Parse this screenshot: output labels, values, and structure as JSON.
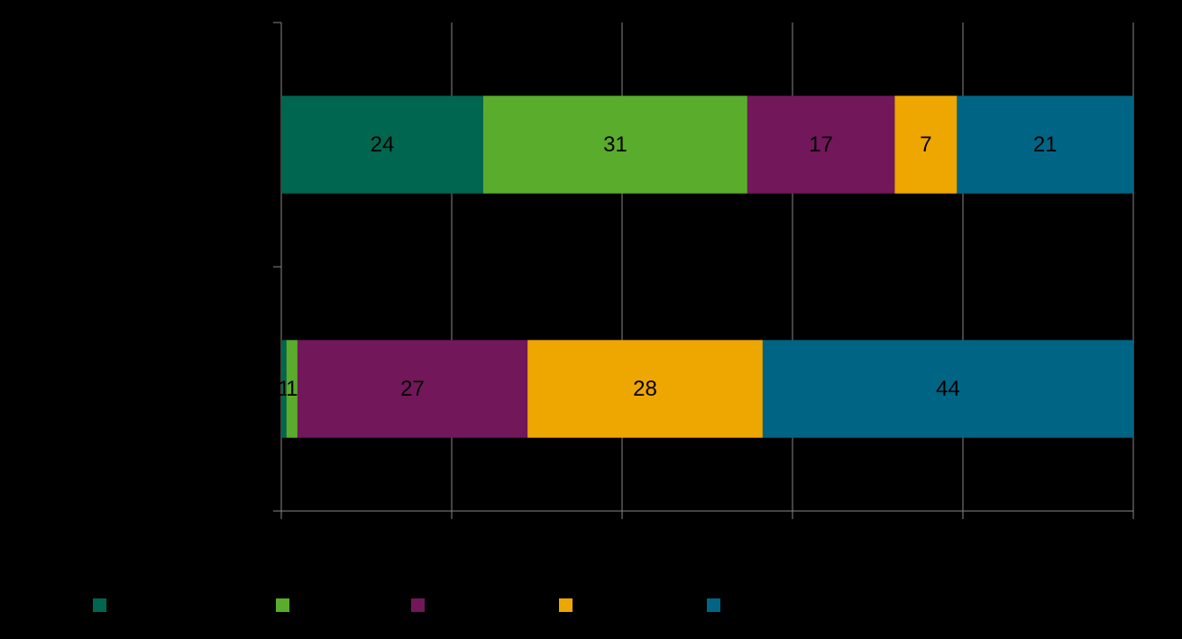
{
  "chart_data": {
    "type": "stacked-bar-horizontal",
    "categories": [
      null,
      null
    ],
    "series": [
      {
        "name": null,
        "color": "#00664f",
        "values": [
          23.7,
          0.6
        ],
        "value_labels": [
          "24",
          "1"
        ]
      },
      {
        "name": null,
        "color": "#5aac2c",
        "values": [
          31,
          1.3
        ],
        "value_labels": [
          "31",
          "1"
        ]
      },
      {
        "name": null,
        "color": "#72175a",
        "values": [
          17.3,
          27
        ],
        "value_labels": [
          "17",
          "27"
        ]
      },
      {
        "name": null,
        "color": "#eea600",
        "values": [
          7.3,
          27.6
        ],
        "value_labels": [
          "7",
          "28"
        ]
      },
      {
        "name": null,
        "color": "#006584",
        "values": [
          20.7,
          43.5
        ],
        "value_labels": [
          "21",
          "44"
        ]
      }
    ],
    "xlim": [
      0,
      100
    ],
    "xticks": [
      0,
      20,
      40,
      60,
      80,
      100
    ],
    "grid": true
  }
}
